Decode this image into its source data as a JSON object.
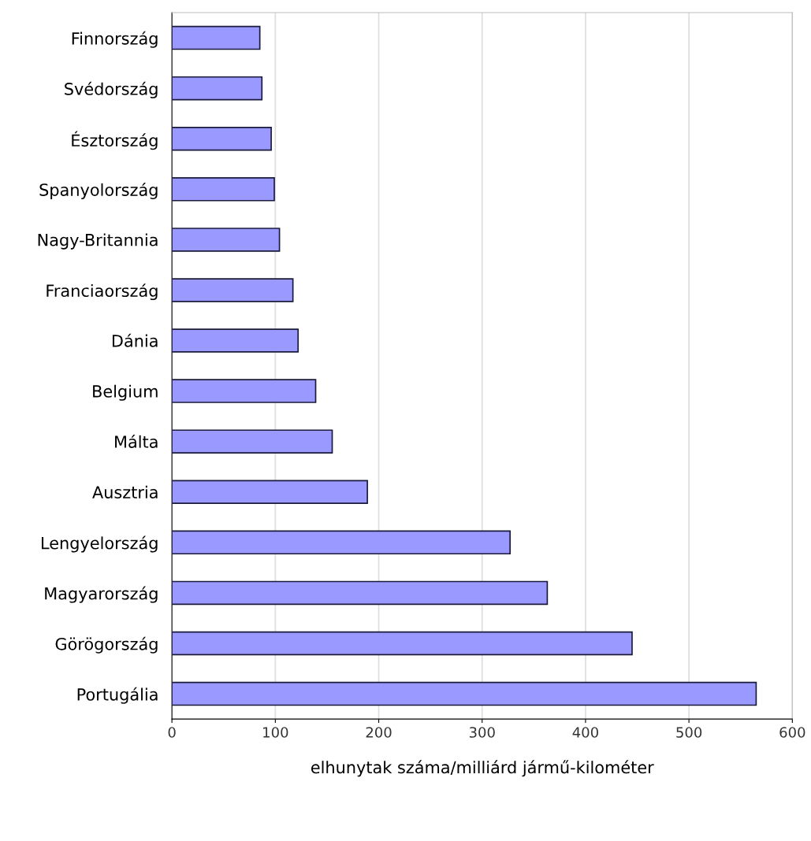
{
  "chart_data": {
    "type": "bar",
    "orientation": "horizontal",
    "xlabel": "elhunytak száma/milliárd jármű-kilométer",
    "categories": [
      "Finnország",
      "Svédország",
      "Észtország",
      "Spanyolország",
      "Nagy-Britannia",
      "Franciaország",
      "Dánia",
      "Belgium",
      "Málta",
      "Ausztria",
      "Lengyelország",
      "Magyarország",
      "Görögország",
      "Portugália"
    ],
    "values": [
      85,
      87,
      96,
      99,
      104,
      117,
      122,
      139,
      155,
      189,
      327,
      363,
      445,
      565
    ],
    "color": "#9999ff",
    "xlim": [
      0,
      600
    ],
    "xticks": [
      0,
      100,
      200,
      300,
      400,
      500,
      600
    ],
    "grid": "x"
  }
}
